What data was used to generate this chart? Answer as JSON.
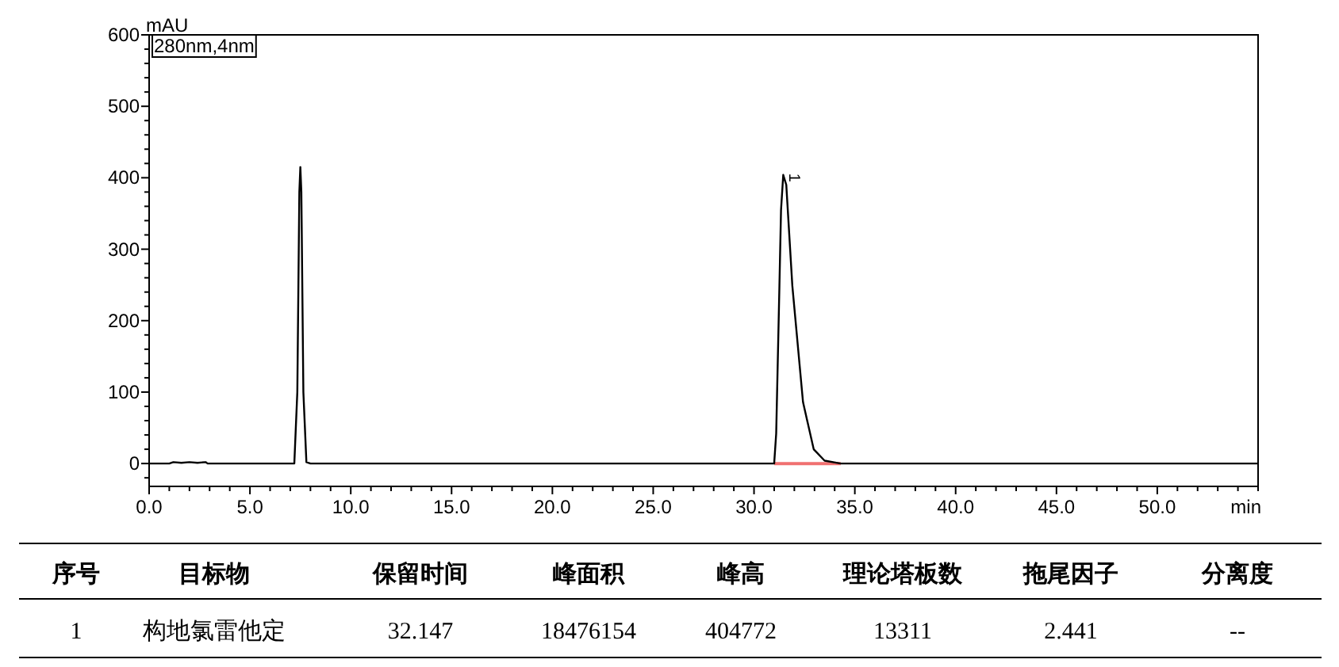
{
  "chart_data": [
    {
      "type": "line",
      "xlabel": "min",
      "ylabel": "mAU",
      "xlim": [
        0,
        55
      ],
      "ylim": [
        -32,
        600
      ],
      "xticks": [
        {
          "value": 0,
          "label": "0.0"
        },
        {
          "value": 1,
          "label": null
        },
        {
          "value": 2,
          "label": null
        },
        {
          "value": 3,
          "label": null
        },
        {
          "value": 4,
          "label": null
        },
        {
          "value": 5,
          "label": "5.0"
        },
        {
          "value": 6,
          "label": null
        },
        {
          "value": 7,
          "label": null
        },
        {
          "value": 8,
          "label": null
        },
        {
          "value": 9,
          "label": null
        },
        {
          "value": 10,
          "label": "10.0"
        },
        {
          "value": 11,
          "label": null
        },
        {
          "value": 12,
          "label": null
        },
        {
          "value": 13,
          "label": null
        },
        {
          "value": 14,
          "label": null
        },
        {
          "value": 15,
          "label": "15.0"
        },
        {
          "value": 16,
          "label": null
        },
        {
          "value": 17,
          "label": null
        },
        {
          "value": 18,
          "label": null
        },
        {
          "value": 19,
          "label": null
        },
        {
          "value": 20,
          "label": "20.0"
        },
        {
          "value": 21,
          "label": null
        },
        {
          "value": 22,
          "label": null
        },
        {
          "value": 23,
          "label": null
        },
        {
          "value": 24,
          "label": null
        },
        {
          "value": 25,
          "label": "25.0"
        },
        {
          "value": 26,
          "label": null
        },
        {
          "value": 27,
          "label": null
        },
        {
          "value": 28,
          "label": null
        },
        {
          "value": 29,
          "label": null
        },
        {
          "value": 30,
          "label": "30.0"
        },
        {
          "value": 31,
          "label": null
        },
        {
          "value": 32,
          "label": null
        },
        {
          "value": 33,
          "label": null
        },
        {
          "value": 34,
          "label": null
        },
        {
          "value": 35,
          "label": "35.0"
        },
        {
          "value": 36,
          "label": null
        },
        {
          "value": 37,
          "label": null
        },
        {
          "value": 38,
          "label": null
        },
        {
          "value": 39,
          "label": null
        },
        {
          "value": 40,
          "label": "40.0"
        },
        {
          "value": 41,
          "label": null
        },
        {
          "value": 42,
          "label": null
        },
        {
          "value": 43,
          "label": null
        },
        {
          "value": 44,
          "label": null
        },
        {
          "value": 45,
          "label": "45.0"
        },
        {
          "value": 46,
          "label": null
        },
        {
          "value": 47,
          "label": null
        },
        {
          "value": 48,
          "label": null
        },
        {
          "value": 49,
          "label": null
        },
        {
          "value": 50,
          "label": "50.0"
        },
        {
          "value": 51,
          "label": null
        },
        {
          "value": 52,
          "label": null
        },
        {
          "value": 53,
          "label": null
        },
        {
          "value": 54,
          "label": null
        },
        {
          "value": 55,
          "label": null
        }
      ],
      "yticks": [
        {
          "value": -20,
          "label": null
        },
        0,
        {
          "value": 20,
          "label": null
        },
        {
          "value": 40,
          "label": null
        },
        {
          "value": 60,
          "label": null
        },
        {
          "value": 80,
          "label": null
        },
        100,
        {
          "value": 120,
          "label": null
        },
        {
          "value": 140,
          "label": null
        },
        {
          "value": 160,
          "label": null
        },
        {
          "value": 180,
          "label": null
        },
        200,
        {
          "value": 220,
          "label": null
        },
        {
          "value": 240,
          "label": null
        },
        {
          "value": 260,
          "label": null
        },
        {
          "value": 280,
          "label": null
        },
        300,
        {
          "value": 320,
          "label": null
        },
        {
          "value": 340,
          "label": null
        },
        {
          "value": 360,
          "label": null
        },
        {
          "value": 380,
          "label": null
        },
        400,
        {
          "value": 420,
          "label": null
        },
        {
          "value": 440,
          "label": null
        },
        {
          "value": 460,
          "label": null
        },
        {
          "value": 480,
          "label": null
        },
        500,
        {
          "value": 520,
          "label": null
        },
        {
          "value": 540,
          "label": null
        },
        {
          "value": 560,
          "label": null
        },
        {
          "value": 580,
          "label": null
        },
        600
      ],
      "series": [
        {
          "color": "#000000",
          "x": [
            0,
            1.0,
            1.2,
            1.6,
            2.0,
            2.4,
            2.8,
            2.9,
            7.2,
            7.35,
            7.45,
            7.5,
            7.55,
            7.65,
            7.8,
            8.0,
            31.0,
            31.1,
            31.26,
            31.34,
            31.45,
            31.6,
            31.9,
            32.43,
            32.96,
            33.5,
            34.3,
            55
          ],
          "values": [
            0,
            0,
            2,
            1,
            2,
            1,
            2,
            0,
            0,
            100,
            380,
            415,
            380,
            100,
            2,
            0,
            0,
            42,
            249,
            355,
            404,
            390,
            249,
            86,
            20,
            4,
            0,
            0
          ]
        },
        {
          "color": "#f07070",
          "x": [
            31.0,
            34.3
          ],
          "values": [
            0,
            0
          ]
        }
      ],
      "annotations": [
        "280nm,4nm",
        {
          "text": "1",
          "x": 31.45,
          "y": 404
        }
      ]
    },
    {
      "type": "other",
      "annotations": [
        "序号",
        "目标物",
        "保留时间",
        "峰面积",
        "峰高",
        "理论塔板数",
        "拖尾因子",
        "分离度",
        "1",
        "构地氯雷他定",
        "32.147",
        "18476154",
        "404772",
        "13311",
        "2.441",
        "--"
      ]
    }
  ]
}
